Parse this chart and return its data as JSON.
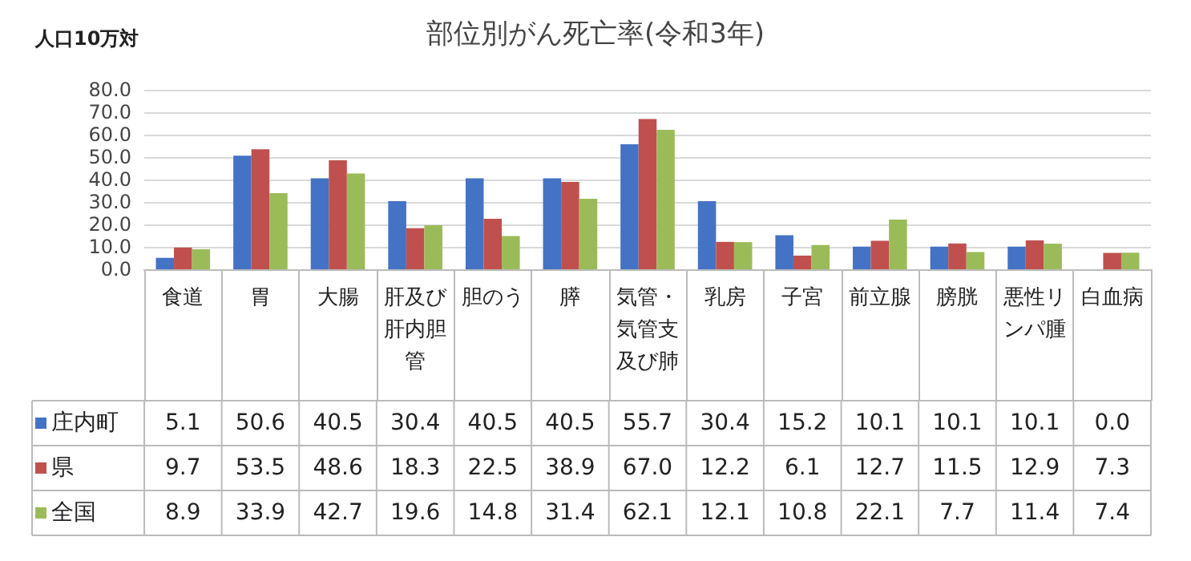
{
  "chart_data": {
    "type": "bar",
    "title": "部位別がん死亡率(令和3年)",
    "ylabel": "人口10万対",
    "categories": [
      "食道",
      "胃",
      "大腸",
      "肝及び肝内胆管",
      "胆のう",
      "膵",
      "気管・気管支及び肺",
      "乳房",
      "子宮",
      "前立腺",
      "膀胱",
      "悪性リンパ腫",
      "白血病"
    ],
    "series": [
      {
        "name": "庄内町",
        "color": "#4472c4",
        "values": [
          5.1,
          50.6,
          40.5,
          30.4,
          40.5,
          40.5,
          55.7,
          30.4,
          15.2,
          10.1,
          10.1,
          10.1,
          0
        ],
        "value_labels": [
          "5.1",
          "50.6",
          "40.5",
          "30.4",
          "40.5",
          "40.5",
          "55.7",
          "30.4",
          "15.2",
          "10.1",
          "10.1",
          "10.1",
          "0.0"
        ]
      },
      {
        "name": "県",
        "color": "#c0504d",
        "values": [
          9.7,
          53.5,
          48.6,
          18.3,
          22.5,
          38.9,
          67,
          12.2,
          6.1,
          12.7,
          11.5,
          12.9,
          7.3
        ],
        "value_labels": [
          "9.7",
          "53.5",
          "48.6",
          "18.3",
          "22.5",
          "38.9",
          "67.0",
          "12.2",
          "6.1",
          "12.7",
          "11.5",
          "12.9",
          "7.3"
        ]
      },
      {
        "name": "全国",
        "color": "#9bbb59",
        "values": [
          8.9,
          33.9,
          42.7,
          19.6,
          14.8,
          31.4,
          62.1,
          12.1,
          10.8,
          22.1,
          7.7,
          11.4,
          7.4
        ],
        "value_labels": [
          "8.9",
          "33.9",
          "42.7",
          "19.6",
          "14.8",
          "31.4",
          "62.1",
          "12.1",
          "10.8",
          "22.1",
          "7.7",
          "11.4",
          "7.4"
        ]
      }
    ],
    "ylim": [
      0,
      80
    ],
    "yticks": [
      {
        "value": 0,
        "label": "0.0"
      },
      {
        "value": 10,
        "label": "10.0"
      },
      {
        "value": 20,
        "label": "20.0"
      },
      {
        "value": 30,
        "label": "30.0"
      },
      {
        "value": 40,
        "label": "40.0"
      },
      {
        "value": 50,
        "label": "50.0"
      },
      {
        "value": 60,
        "label": "60.0"
      },
      {
        "value": 70,
        "label": "70.0"
      },
      {
        "value": 80,
        "label": "80.0"
      }
    ],
    "grid": "y",
    "legend": "bottom"
  }
}
